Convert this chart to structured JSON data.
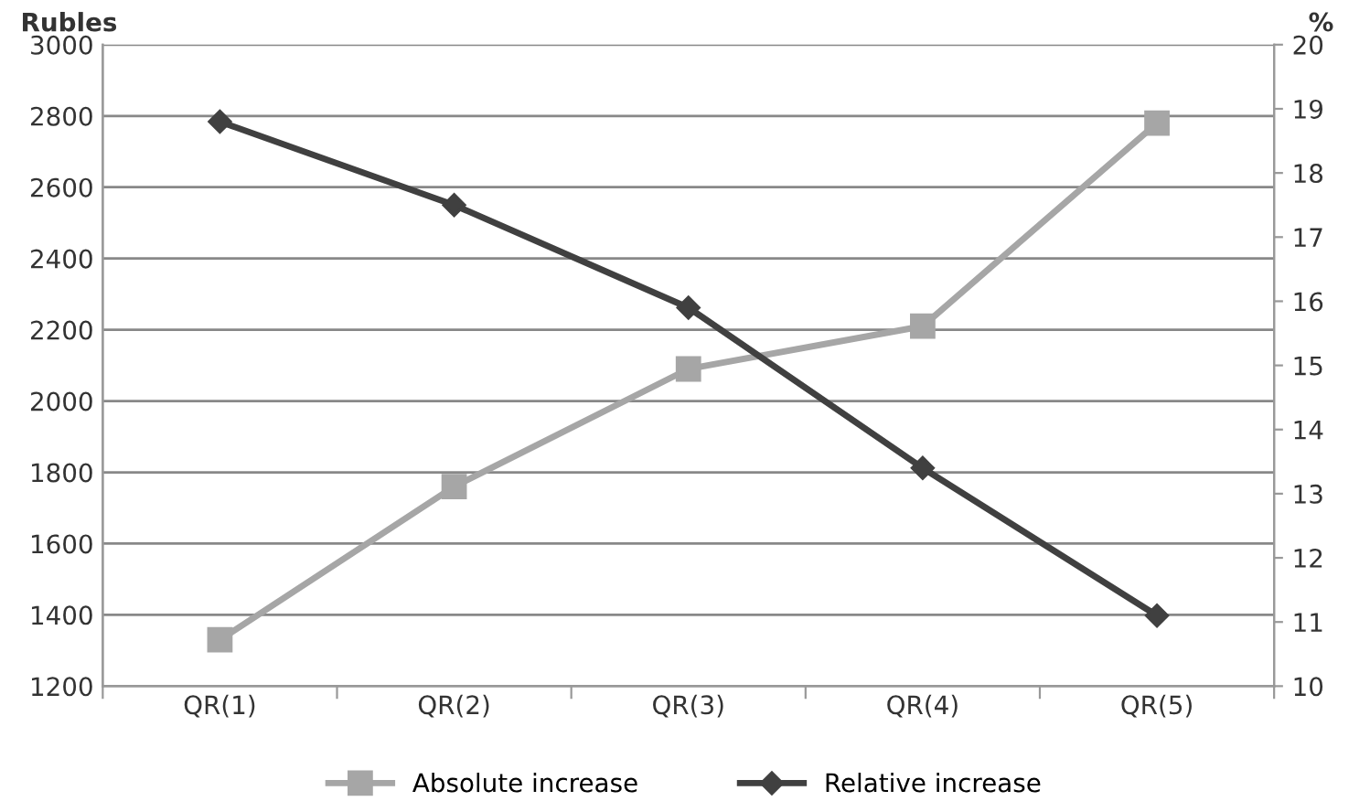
{
  "chart_data": {
    "type": "line",
    "categories": [
      "QR(1)",
      "QR(2)",
      "QR(3)",
      "QR(4)",
      "QR(5)"
    ],
    "ylabel": "Rubles",
    "y2label": "%",
    "ylim": [
      1200,
      3000
    ],
    "yticks": [
      1200,
      1400,
      1600,
      1800,
      2000,
      2200,
      2400,
      2600,
      2800,
      3000
    ],
    "y2lim": [
      10,
      20
    ],
    "y2ticks": [
      10,
      11,
      12,
      13,
      14,
      15,
      16,
      17,
      18,
      19,
      20
    ],
    "series": [
      {
        "name": "Absolute increase",
        "color": "#a6a6a6",
        "marker": "square",
        "values": [
          1330,
          1760,
          2090,
          2210,
          2780
        ]
      },
      {
        "name": "Relative increase",
        "color": "#404040",
        "marker": "diamond",
        "axis": "y2",
        "values": [
          18.8,
          17.5,
          15.9,
          13.4,
          11.1
        ]
      }
    ],
    "grid": "y",
    "legend": "bottom",
    "line_style": "solid"
  }
}
